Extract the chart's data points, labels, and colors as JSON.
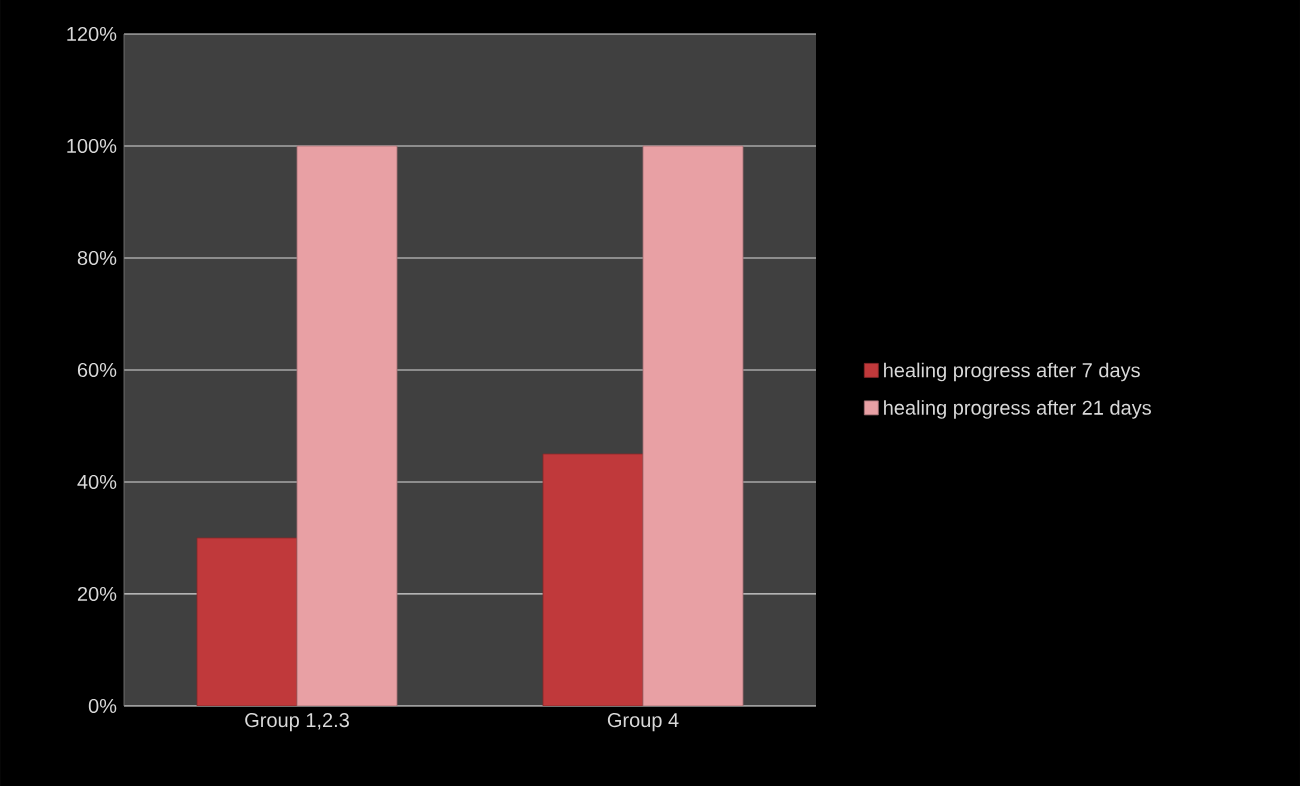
{
  "chart_data": {
    "type": "bar",
    "categories": [
      "Group 1,2.3",
      "Group 4"
    ],
    "series": [
      {
        "name": "healing progress after 7 days",
        "color": "#c0393b",
        "values": [
          30,
          45
        ]
      },
      {
        "name": "healing progress after 21 days",
        "color": "#e8a0a4",
        "values": [
          100,
          100
        ]
      }
    ],
    "ylim": [
      0,
      120
    ],
    "yticks": [
      {
        "value": 0,
        "label": "0%"
      },
      {
        "value": 20,
        "label": "20%"
      },
      {
        "value": 40,
        "label": "40%"
      },
      {
        "value": 60,
        "label": "60%"
      },
      {
        "value": 80,
        "label": "80%"
      },
      {
        "value": 100,
        "label": "100%"
      },
      {
        "value": 120,
        "label": "120%"
      }
    ],
    "grid": "y",
    "legend": "right"
  }
}
